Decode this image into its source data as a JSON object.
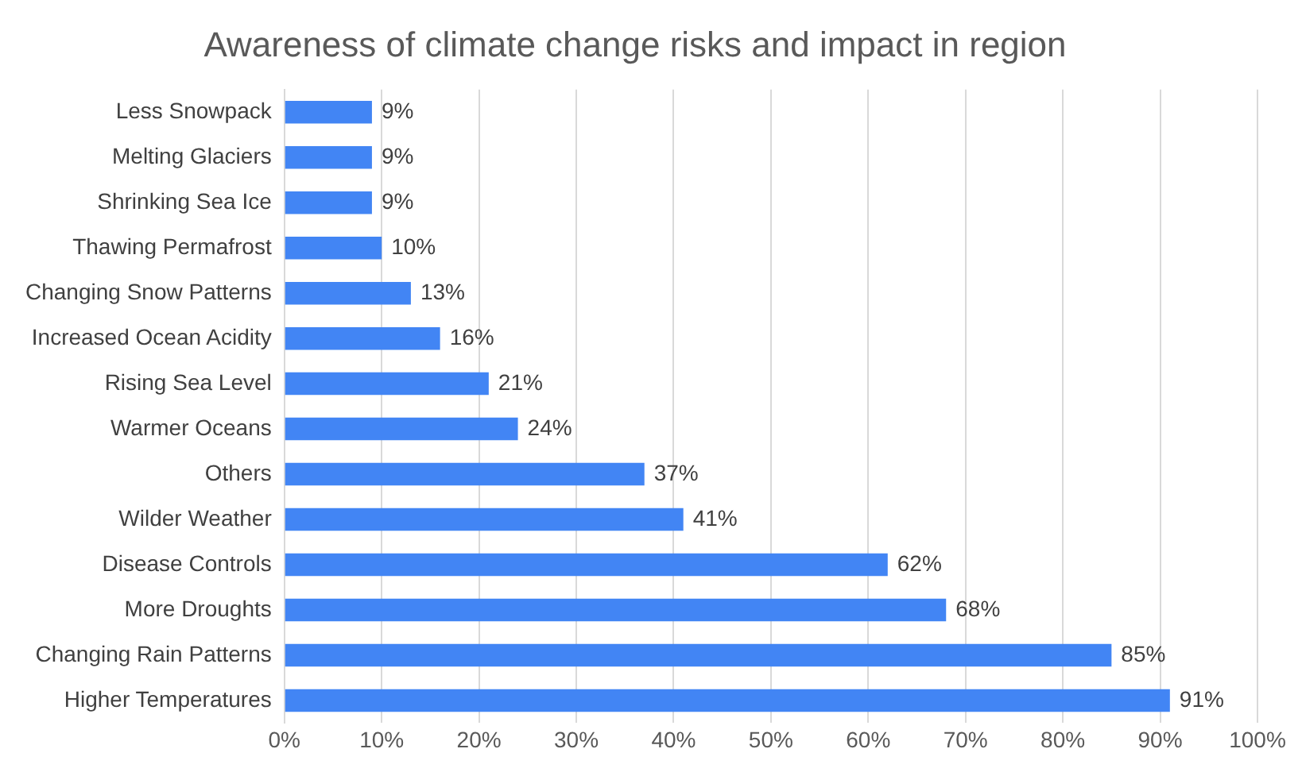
{
  "chart_data": {
    "type": "bar",
    "orientation": "horizontal",
    "title": "Awareness of climate change risks and impact in region",
    "categories": [
      "Less Snowpack",
      "Melting Glaciers",
      "Shrinking Sea Ice",
      "Thawing Permafrost",
      "Changing Snow Patterns",
      "Increased Ocean Acidity",
      "Rising Sea Level",
      "Warmer Oceans",
      "Others",
      "Wilder Weather",
      "Disease Controls",
      "More Droughts",
      "Changing Rain Patterns",
      "Higher Temperatures"
    ],
    "values": [
      9,
      9,
      9,
      10,
      13,
      16,
      21,
      24,
      37,
      41,
      62,
      68,
      85,
      91
    ],
    "value_labels": [
      "9%",
      "9%",
      "9%",
      "10%",
      "13%",
      "16%",
      "21%",
      "24%",
      "37%",
      "41%",
      "62%",
      "68%",
      "85%",
      "91%"
    ],
    "color": "#4285f4",
    "xlim": [
      0,
      100
    ],
    "xticks": [
      {
        "value": 0,
        "label": "0%"
      },
      {
        "value": 10,
        "label": "10%"
      },
      {
        "value": 20,
        "label": "20%"
      },
      {
        "value": 30,
        "label": "30%"
      },
      {
        "value": 40,
        "label": "40%"
      },
      {
        "value": 50,
        "label": "50%"
      },
      {
        "value": 60,
        "label": "60%"
      },
      {
        "value": 70,
        "label": "70%"
      },
      {
        "value": 80,
        "label": "80%"
      },
      {
        "value": 90,
        "label": "90%"
      },
      {
        "value": 100,
        "label": "100%"
      }
    ],
    "grid": "x",
    "legend": false
  }
}
